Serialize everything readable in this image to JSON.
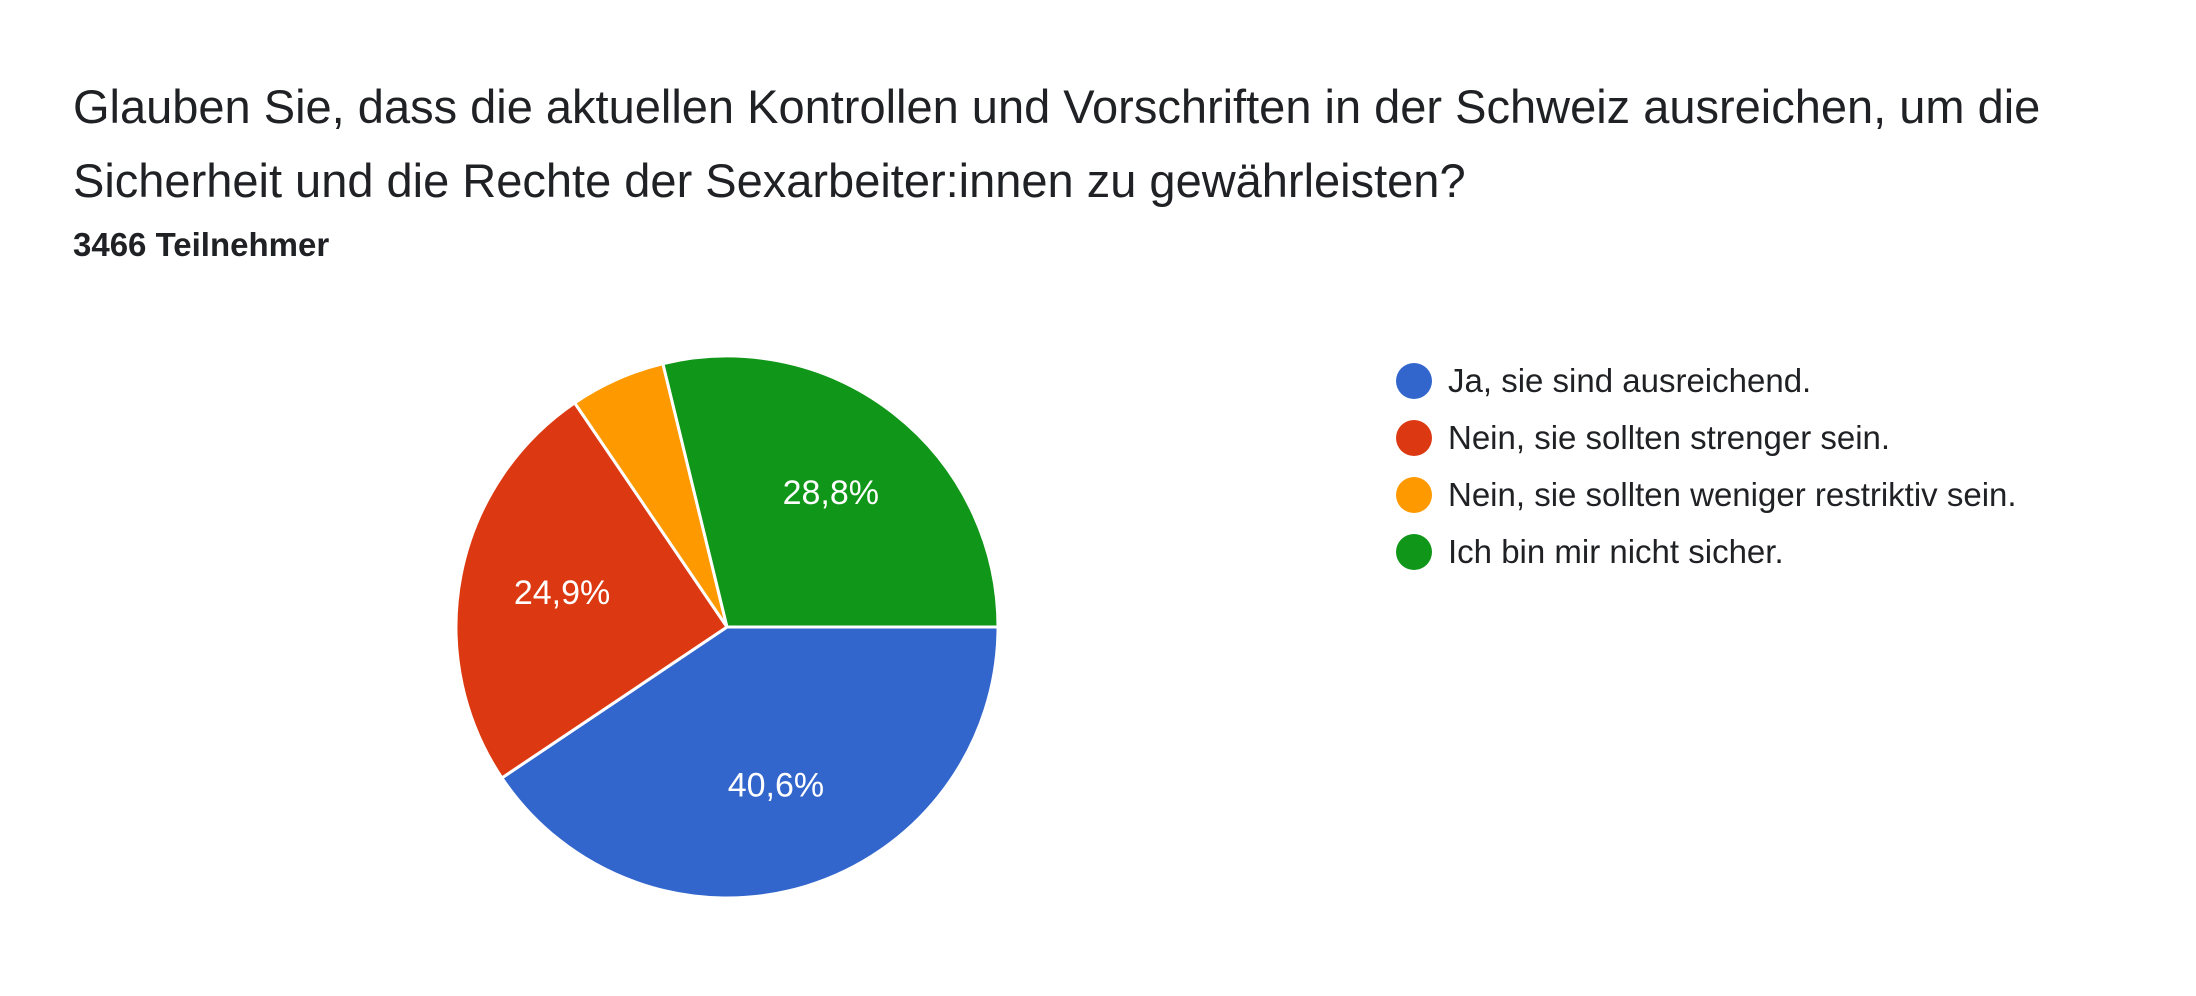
{
  "question": {
    "title": "Glauben Sie, dass die aktuellen Kontrollen und Vorschriften in der Schweiz ausreichen, um die Sicherheit und die Rechte der Sexarbeiter:innen zu gewährleisten?",
    "participants": "3466 Teilnehmer"
  },
  "chart_data": {
    "type": "pie",
    "categories": [
      "Ja, sie sind ausreichend.",
      "Nein, sie sollten strenger sein.",
      "Nein, sie sollten weniger restriktiv sein.",
      "Ich bin mir nicht sicher."
    ],
    "values": [
      40.6,
      24.9,
      5.7,
      28.8
    ],
    "value_labels": [
      "40,6%",
      "24,9%",
      "",
      "28,8%"
    ],
    "colors": [
      "#3366cc",
      "#dc3912",
      "#ff9900",
      "#109618"
    ],
    "legend_position": "right"
  }
}
